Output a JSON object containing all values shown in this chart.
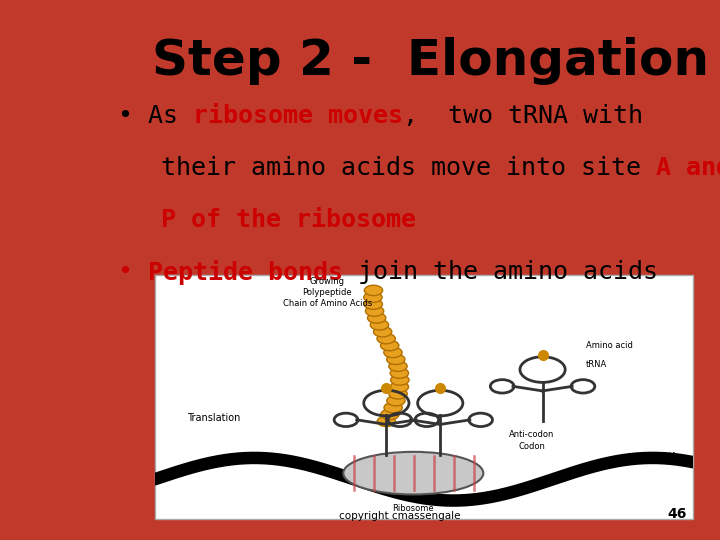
{
  "title": "Step 2 -  Elongation",
  "title_fontsize": 36,
  "title_color": "#000000",
  "bg_slide_color": "#c0392b",
  "bg_panel_color": "#d4d4d4",
  "bullet_fontsize": 18,
  "page_number": "46",
  "copyright_text": "copyright cmassengale",
  "bullet1_line1": [
    {
      "text": "• As ",
      "color": "#000000",
      "bold": false
    },
    {
      "text": "ribosome moves",
      "color": "#cc0000",
      "bold": true
    },
    {
      "text": ",  two tRNA with",
      "color": "#000000",
      "bold": false
    }
  ],
  "bullet1_line2": [
    {
      "text": "their amino acids move into site ",
      "color": "#000000",
      "bold": false
    },
    {
      "text": "A and",
      "color": "#cc0000",
      "bold": true
    }
  ],
  "bullet1_line3": [
    {
      "text": "P of the ribosome",
      "color": "#cc0000",
      "bold": true
    }
  ],
  "bullet2_line1": [
    {
      "text": "• ",
      "color": "#cc0000",
      "bold": false
    },
    {
      "text": "Peptide bonds ",
      "color": "#cc0000",
      "bold": true
    },
    {
      "text": "join the amino acids",
      "color": "#000000",
      "bold": false
    }
  ]
}
